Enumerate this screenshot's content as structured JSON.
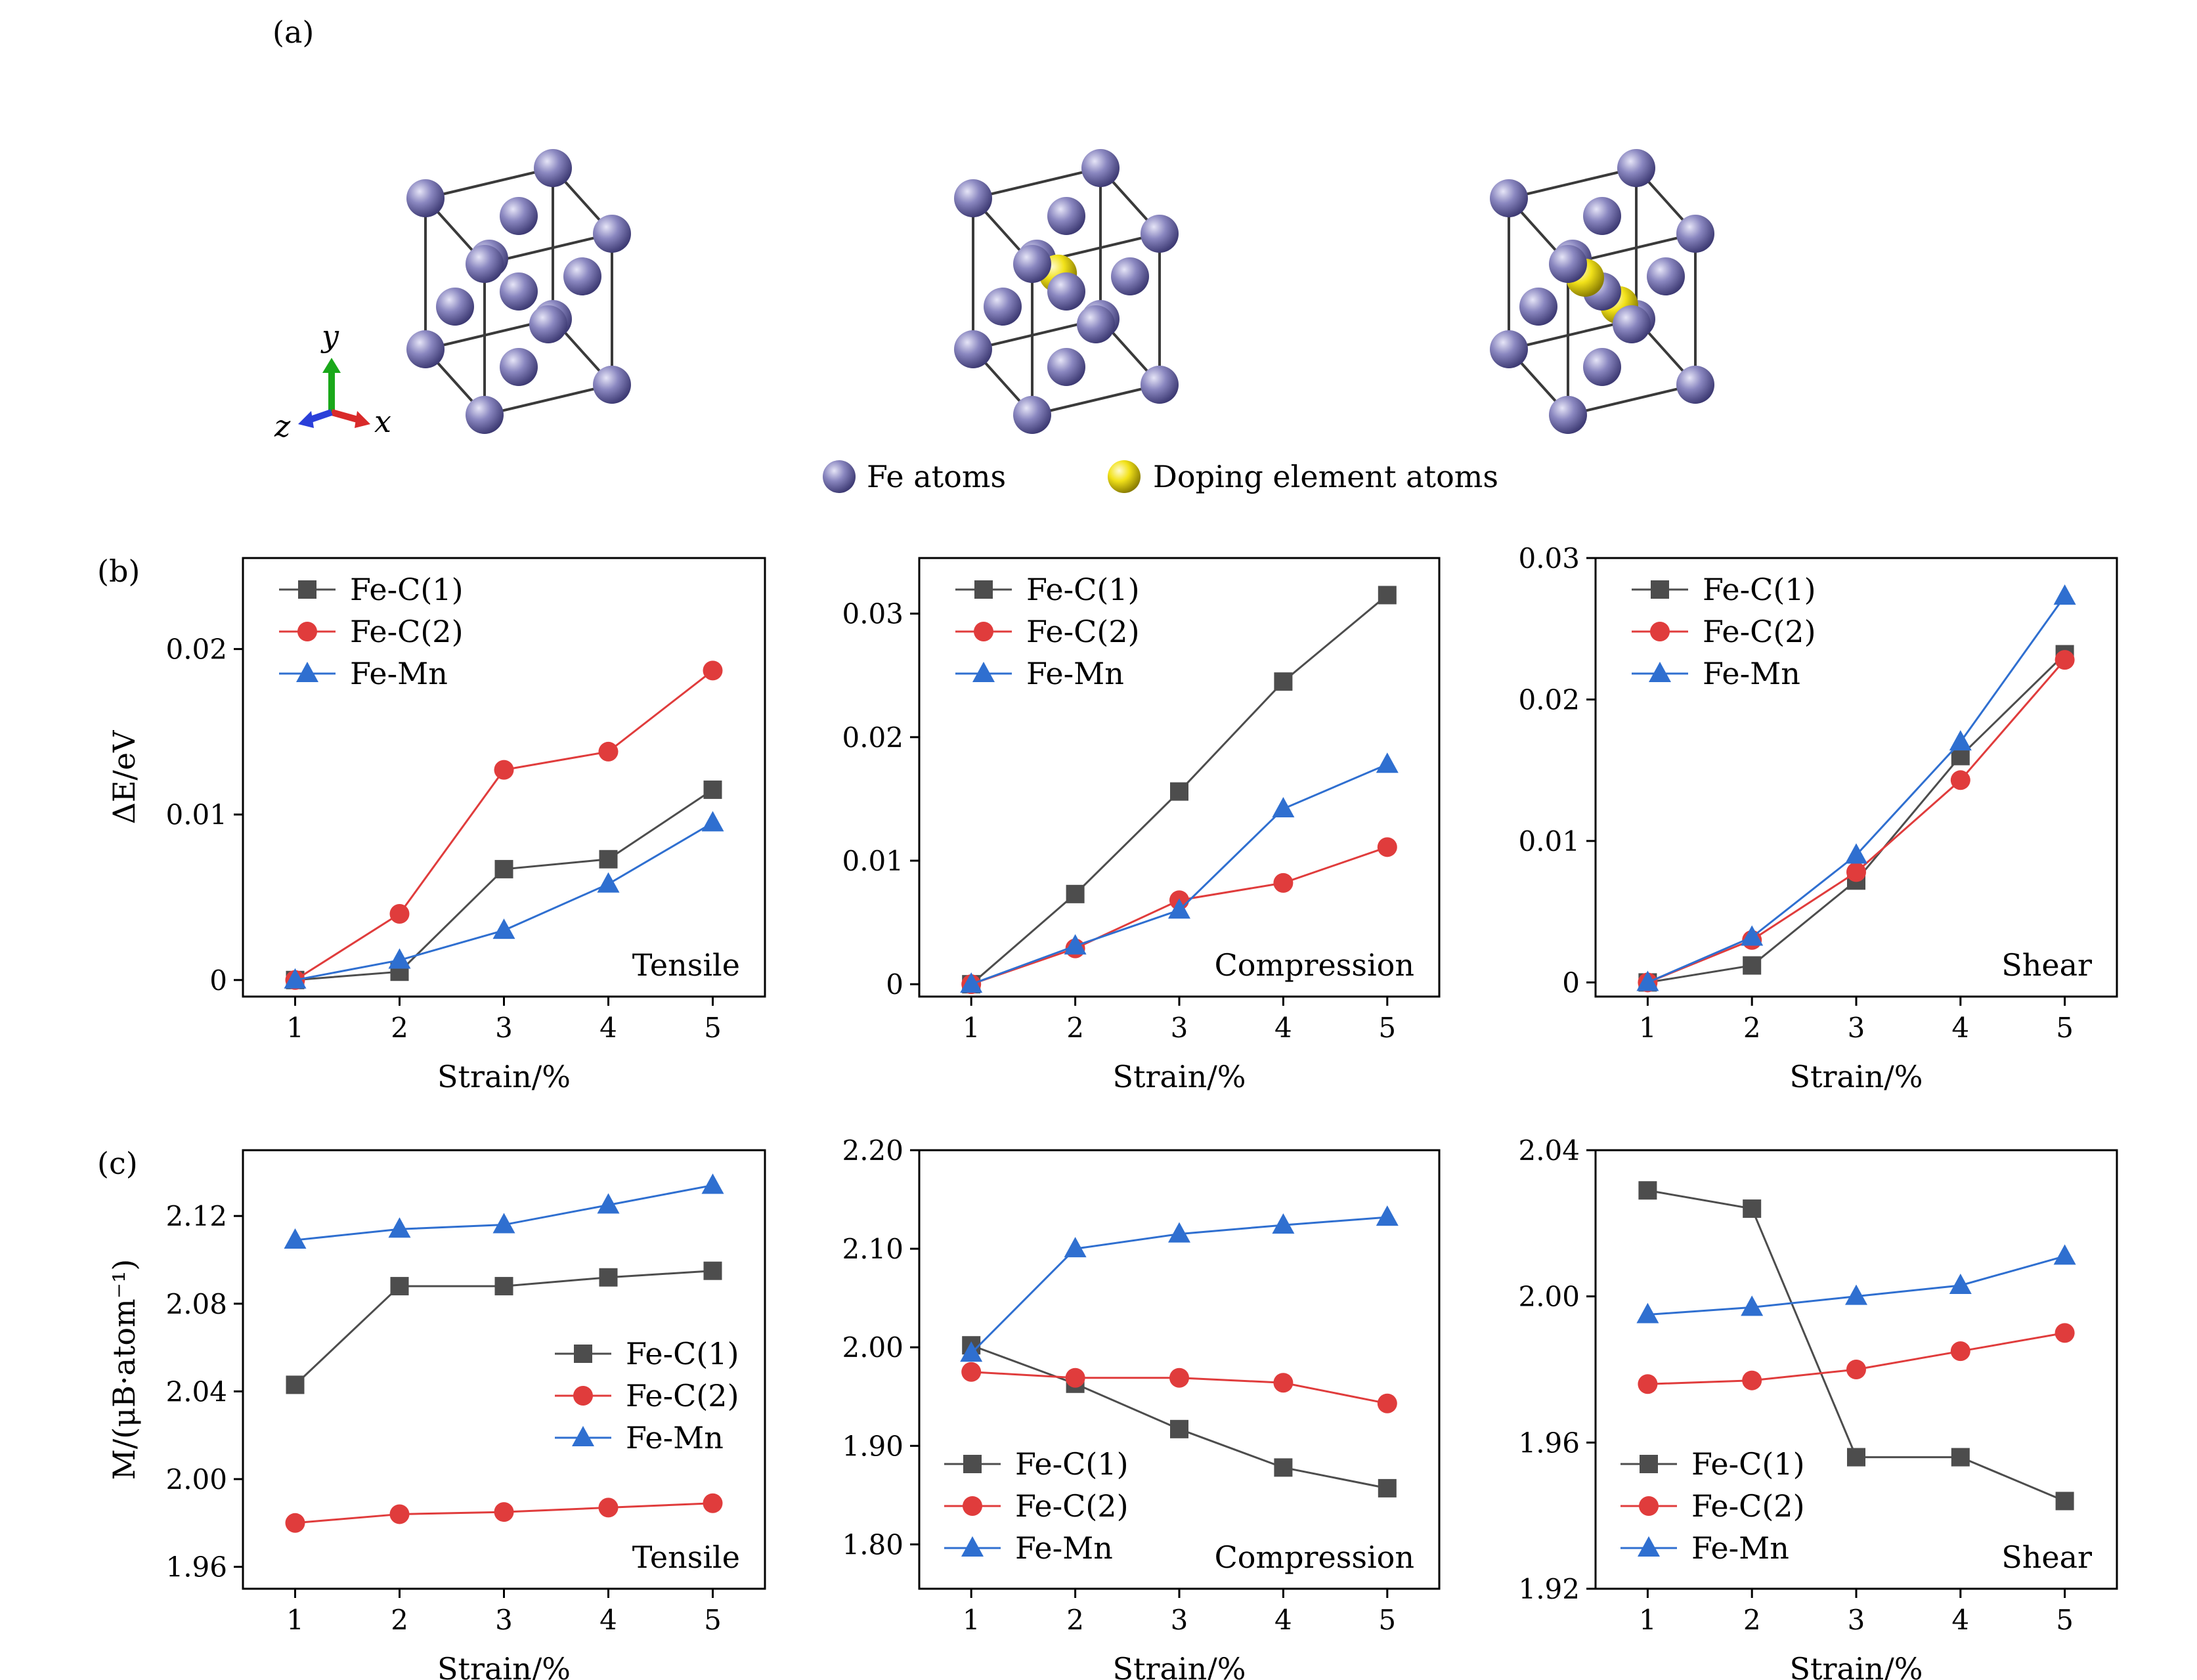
{
  "figure": {
    "panel_labels": [
      "(a)",
      "(b)",
      "(c)"
    ],
    "structure_legend": {
      "fe_label": "Fe atoms",
      "dopant_label": "Doping element atoms"
    },
    "axes_triad": {
      "x": "x",
      "y": "y",
      "z": "z"
    },
    "colors": {
      "Fe-C(1)": "#4d4d4d",
      "Fe-C(2)": "#e03c3c",
      "Fe-Mn": "#2f6fd0",
      "fe_atom": "#8a87c0",
      "dopant_atom": "#f2e21a"
    }
  },
  "chart_data": [
    {
      "id": "b-tensile",
      "type": "line",
      "panel": "(b)",
      "annotation": "Tensile",
      "xlabel": "Strain/%",
      "ylabel": "ΔE/eV",
      "x": [
        1,
        2,
        3,
        4,
        5
      ],
      "xlim": [
        0.5,
        5.5
      ],
      "xticks": [
        "1",
        "2",
        "3",
        "4",
        "5"
      ],
      "ylim": [
        -0.001,
        0.0255
      ],
      "yticks": [
        0,
        0.01,
        0.02
      ],
      "ytick_labels": [
        "0",
        "0.01",
        "0.02"
      ],
      "legend_loc": "top-left",
      "series": [
        {
          "name": "Fe-C(1)",
          "marker": "square",
          "values": [
            0,
            0.0005,
            0.0067,
            0.0073,
            0.0115
          ]
        },
        {
          "name": "Fe-C(2)",
          "marker": "circle",
          "values": [
            0,
            0.004,
            0.0127,
            0.0138,
            0.0187
          ]
        },
        {
          "name": "Fe-Mn",
          "marker": "triangle",
          "values": [
            0,
            0.0012,
            0.003,
            0.0058,
            0.0095
          ]
        }
      ]
    },
    {
      "id": "b-compression",
      "type": "line",
      "panel": "",
      "annotation": "Compression",
      "xlabel": "Strain/%",
      "ylabel": "",
      "x": [
        1,
        2,
        3,
        4,
        5
      ],
      "xlim": [
        0.5,
        5.5
      ],
      "xticks": [
        "1",
        "2",
        "3",
        "4",
        "5"
      ],
      "ylim": [
        -0.001,
        0.0345
      ],
      "yticks": [
        0,
        0.01,
        0.02,
        0.03
      ],
      "ytick_labels": [
        "0",
        "0.01",
        "0.02",
        "0.03"
      ],
      "legend_loc": "top-left",
      "series": [
        {
          "name": "Fe-C(1)",
          "marker": "square",
          "values": [
            0,
            0.0073,
            0.0156,
            0.0245,
            0.0315
          ]
        },
        {
          "name": "Fe-C(2)",
          "marker": "circle",
          "values": [
            0,
            0.0029,
            0.0068,
            0.0082,
            0.0111
          ]
        },
        {
          "name": "Fe-Mn",
          "marker": "triangle",
          "values": [
            0,
            0.0031,
            0.006,
            0.0142,
            0.0178
          ]
        }
      ]
    },
    {
      "id": "b-shear",
      "type": "line",
      "panel": "",
      "annotation": "Shear",
      "xlabel": "Strain/%",
      "ylabel": "",
      "x": [
        1,
        2,
        3,
        4,
        5
      ],
      "xlim": [
        0.5,
        5.5
      ],
      "xticks": [
        "1",
        "2",
        "3",
        "4",
        "5"
      ],
      "ylim": [
        -0.001,
        0.03
      ],
      "yticks": [
        0,
        0.01,
        0.02,
        0.03
      ],
      "ytick_labels": [
        "0",
        "0.01",
        "0.02",
        "0.03"
      ],
      "legend_loc": "top-left",
      "series": [
        {
          "name": "Fe-C(1)",
          "marker": "square",
          "values": [
            0,
            0.0012,
            0.0072,
            0.016,
            0.0232
          ]
        },
        {
          "name": "Fe-C(2)",
          "marker": "circle",
          "values": [
            0,
            0.003,
            0.0078,
            0.0143,
            0.0228
          ]
        },
        {
          "name": "Fe-Mn",
          "marker": "triangle",
          "values": [
            0,
            0.0032,
            0.009,
            0.017,
            0.0273
          ]
        }
      ]
    },
    {
      "id": "c-tensile",
      "type": "line",
      "panel": "(c)",
      "annotation": "Tensile",
      "xlabel": "Strain/%",
      "ylabel": "M/(μB·atom⁻¹)",
      "x": [
        1,
        2,
        3,
        4,
        5
      ],
      "xlim": [
        0.5,
        5.5
      ],
      "xticks": [
        "1",
        "2",
        "3",
        "4",
        "5"
      ],
      "ylim": [
        1.95,
        2.15
      ],
      "yticks": [
        1.96,
        2.0,
        2.04,
        2.08,
        2.12
      ],
      "ytick_labels": [
        "1.96",
        "2.00",
        "2.04",
        "2.08",
        "2.12"
      ],
      "legend_loc": "center-right",
      "series": [
        {
          "name": "Fe-C(1)",
          "marker": "square",
          "values": [
            2.043,
            2.088,
            2.088,
            2.092,
            2.095
          ]
        },
        {
          "name": "Fe-C(2)",
          "marker": "circle",
          "values": [
            1.98,
            1.984,
            1.985,
            1.987,
            1.989
          ]
        },
        {
          "name": "Fe-Mn",
          "marker": "triangle",
          "values": [
            2.109,
            2.114,
            2.116,
            2.125,
            2.134
          ]
        }
      ]
    },
    {
      "id": "c-compression",
      "type": "line",
      "panel": "",
      "annotation": "Compression",
      "xlabel": "Strain/%",
      "ylabel": "",
      "x": [
        1,
        2,
        3,
        4,
        5
      ],
      "xlim": [
        0.5,
        5.5
      ],
      "xticks": [
        "1",
        "2",
        "3",
        "4",
        "5"
      ],
      "ylim": [
        1.755,
        2.2
      ],
      "yticks": [
        1.8,
        1.9,
        2.0,
        2.1,
        2.2
      ],
      "ytick_labels": [
        "1.80",
        "1.90",
        "2.00",
        "2.10",
        "2.20"
      ],
      "legend_loc": "bottom-left",
      "series": [
        {
          "name": "Fe-C(1)",
          "marker": "square",
          "values": [
            2.002,
            1.963,
            1.917,
            1.878,
            1.857
          ]
        },
        {
          "name": "Fe-C(2)",
          "marker": "circle",
          "values": [
            1.975,
            1.969,
            1.969,
            1.964,
            1.943
          ]
        },
        {
          "name": "Fe-Mn",
          "marker": "triangle",
          "values": [
            1.994,
            2.1,
            2.115,
            2.124,
            2.132
          ]
        }
      ]
    },
    {
      "id": "c-shear",
      "type": "line",
      "panel": "",
      "annotation": "Shear",
      "xlabel": "Strain/%",
      "ylabel": "",
      "x": [
        1,
        2,
        3,
        4,
        5
      ],
      "xlim": [
        0.5,
        5.5
      ],
      "xticks": [
        "1",
        "2",
        "3",
        "4",
        "5"
      ],
      "ylim": [
        1.92,
        2.04
      ],
      "yticks": [
        1.92,
        1.96,
        2.0,
        2.04
      ],
      "ytick_labels": [
        "1.92",
        "1.96",
        "2.00",
        "2.04"
      ],
      "legend_loc": "bottom-left",
      "series": [
        {
          "name": "Fe-C(1)",
          "marker": "square",
          "values": [
            2.029,
            2.024,
            1.956,
            1.956,
            1.944
          ]
        },
        {
          "name": "Fe-C(2)",
          "marker": "circle",
          "values": [
            1.976,
            1.977,
            1.98,
            1.985,
            1.99
          ]
        },
        {
          "name": "Fe-Mn",
          "marker": "triangle",
          "values": [
            1.995,
            1.997,
            2.0,
            2.003,
            2.011
          ]
        }
      ]
    }
  ]
}
